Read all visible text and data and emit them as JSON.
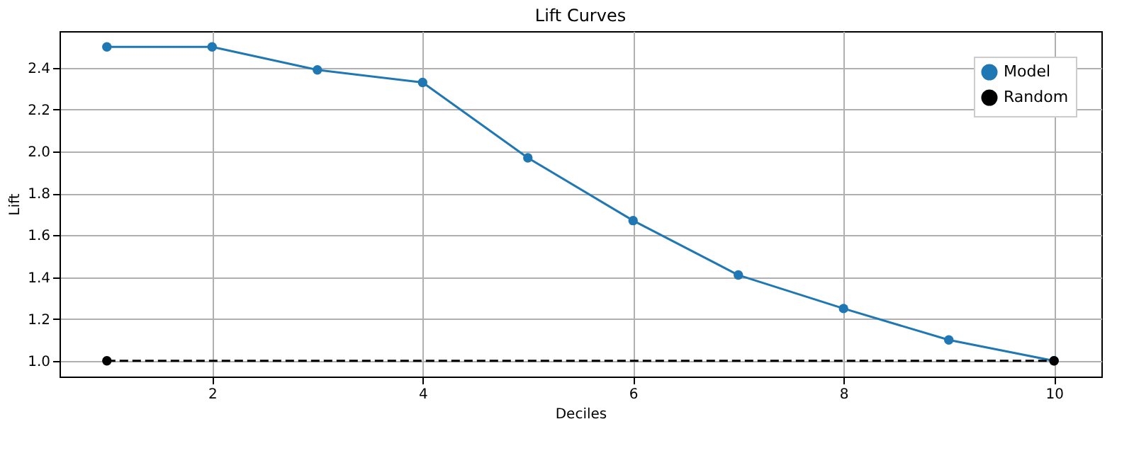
{
  "chart_data": {
    "type": "line",
    "title": "Lift Curves",
    "xlabel": "Deciles",
    "ylabel": "Lift",
    "x": [
      1,
      2,
      3,
      4,
      5,
      6,
      7,
      8,
      9,
      10
    ],
    "series": [
      {
        "name": "Model",
        "color": "#1f77b4",
        "line_style": "solid",
        "marker": "circle",
        "values": [
          2.5,
          2.5,
          2.39,
          2.33,
          1.97,
          1.67,
          1.41,
          1.25,
          1.1,
          1.0
        ]
      },
      {
        "name": "Random",
        "color": "#000000",
        "line_style": "dashed",
        "marker": "circle",
        "x": [
          1,
          10
        ],
        "values": [
          1.0,
          1.0
        ]
      }
    ],
    "xlim": [
      0.55,
      10.45
    ],
    "xticks": [
      2,
      4,
      6,
      8,
      10
    ],
    "ylim": [
      0.925,
      2.575
    ],
    "yticks": [
      {
        "value": 1,
        "label": "1.0"
      },
      {
        "value": 1.2,
        "label": "1.2"
      },
      {
        "value": 1.4,
        "label": "1.4"
      },
      {
        "value": 1.6,
        "label": "1.6"
      },
      {
        "value": 1.8,
        "label": "1.8"
      },
      {
        "value": 2,
        "label": "2.0"
      },
      {
        "value": 2.2,
        "label": "2.2"
      },
      {
        "value": 2.4,
        "label": "2.4"
      }
    ],
    "grid": true,
    "legend": "top right"
  }
}
